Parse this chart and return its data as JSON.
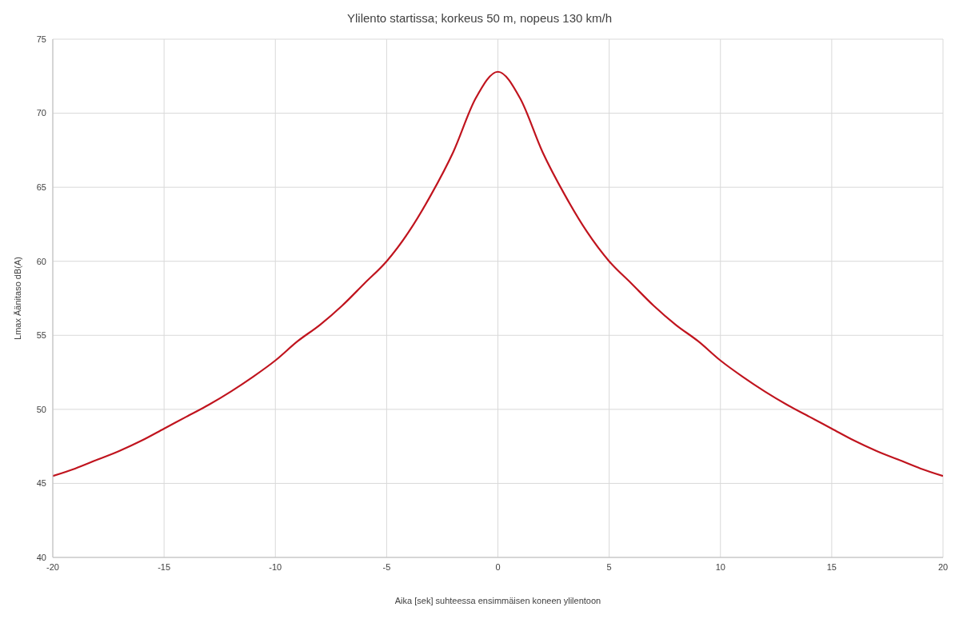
{
  "chart_data": {
    "type": "line",
    "title": "Ylilento startissa; korkeus 50 m,  nopeus 130 km/h",
    "xlabel": "Aika  [sek] suhteessa ensimmäisen koneen ylilentoon",
    "ylabel": "Lmax Äänitaso dB(A)",
    "x": [
      -20,
      -19,
      -18,
      -17,
      -16,
      -15,
      -14,
      -13,
      -12,
      -11,
      -10,
      -9,
      -8,
      -7,
      -6,
      -5,
      -4,
      -3,
      -2,
      -1,
      0,
      1,
      2,
      3,
      4,
      5,
      6,
      7,
      8,
      9,
      10,
      11,
      12,
      13,
      14,
      15,
      16,
      17,
      18,
      19,
      20
    ],
    "series": [
      {
        "color": "#c0141e",
        "values": [
          45.5,
          46.0,
          46.6,
          47.2,
          47.9,
          48.7,
          49.5,
          50.3,
          51.2,
          52.2,
          53.3,
          54.6,
          55.7,
          57.0,
          58.5,
          60.0,
          62.0,
          64.5,
          67.4,
          71.0,
          72.8,
          71.0,
          67.4,
          64.5,
          62.0,
          60.0,
          58.5,
          57.0,
          55.7,
          54.6,
          53.3,
          52.2,
          51.2,
          50.3,
          49.5,
          48.7,
          47.9,
          47.2,
          46.6,
          46.0,
          45.5
        ]
      }
    ],
    "xlim": [
      -20,
      20
    ],
    "xticks": [
      -20,
      -15,
      -10,
      -5,
      0,
      5,
      10,
      15,
      20
    ],
    "ylim": [
      40,
      75
    ],
    "yticks": [
      40,
      45,
      50,
      55,
      60,
      65,
      70,
      75
    ],
    "grid": true,
    "legend": false,
    "marker": "none",
    "line_style": "solid"
  }
}
